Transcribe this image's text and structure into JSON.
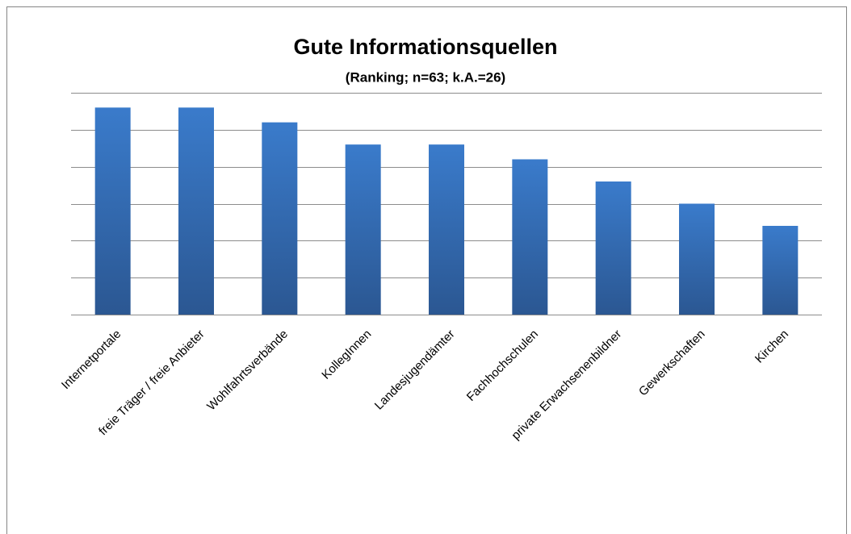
{
  "chart_data": {
    "type": "bar",
    "title": "Gute Informationsquellen",
    "subtitle": "(Ranking; n=63; k.A.=26)",
    "categories": [
      "Internetportale",
      "freie Träger / freie Anbieter",
      "Wohlfahrtsverbände",
      "KollegInnen",
      "Landesjugendämter",
      "Fachhochschulen",
      "private Erwachsenenbildner",
      "Gewerkschaften",
      "Kirchen"
    ],
    "values": [
      5.6,
      5.6,
      5.2,
      4.6,
      4.6,
      4.2,
      3.6,
      3.0,
      2.4
    ],
    "color": "#3473c0",
    "ylim": [
      0,
      6
    ],
    "yticks": [
      0,
      1,
      2,
      3,
      4,
      5,
      6
    ],
    "grid": true
  }
}
